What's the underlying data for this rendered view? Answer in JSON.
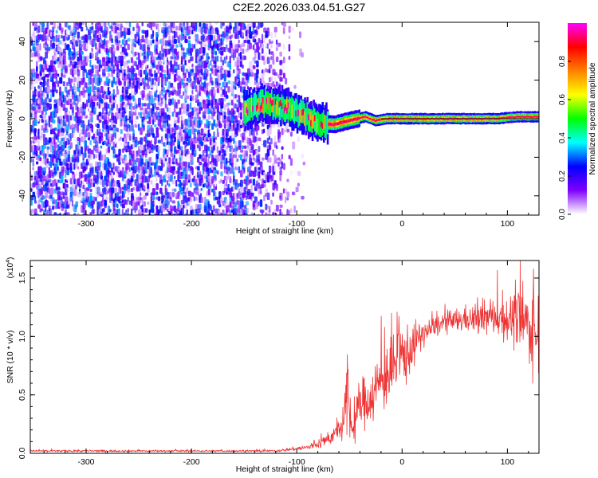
{
  "title": "C2E2.2026.033.04.51.G27",
  "chart_data": [
    {
      "type": "heatmap",
      "title": "C2E2.2026.033.04.51.G27",
      "xlabel": "Height of straight line (km)",
      "ylabel": "Frequency (Hz)",
      "xlim": [
        -353,
        130
      ],
      "ylim": [
        -50,
        50
      ],
      "xticks": [
        -300,
        -200,
        -100,
        0,
        100
      ],
      "xtick_labels": [
        "-300",
        "-200",
        "-100",
        "0",
        "100"
      ],
      "yticks": [
        -40,
        -20,
        0,
        20,
        40
      ],
      "ytick_labels": [
        "-40",
        "-20",
        "0",
        "20",
        "40"
      ],
      "grid": false,
      "noise_region_x": [
        -353,
        -100
      ],
      "signal_track": {
        "x": [
          -150,
          -130,
          -110,
          -95,
          -80,
          -65,
          -50,
          -35,
          -25,
          -15,
          -5,
          0,
          30,
          60,
          90,
          110,
          130
        ],
        "frequency": [
          4,
          8,
          6,
          2,
          -2,
          -3,
          -1,
          1,
          -1,
          0,
          0,
          0,
          0,
          0,
          0,
          1,
          1
        ]
      },
      "colorbar": {
        "label": "Normalized spectral amplitude",
        "range": [
          0,
          1
        ],
        "ticks": [
          0.0,
          0.2,
          0.4,
          0.6,
          0.8
        ],
        "tick_labels": [
          "0.0",
          "0.2",
          "0.4",
          "0.6",
          "0.8"
        ],
        "colors": [
          "#ffffff",
          "#8000ff",
          "#0000ff",
          "#00ffff",
          "#00ff00",
          "#ffff00",
          "#ff8000",
          "#ff0000",
          "#ff00ff"
        ]
      }
    },
    {
      "type": "line",
      "xlabel": "Height of straight line (km)",
      "ylabel": "SNR (10 * v/v)",
      "y_scale_label": "(x10",
      "y_scale_exp": "4",
      "y_scale_close": ")",
      "xlim": [
        -353,
        130
      ],
      "ylim": [
        0,
        1.65
      ],
      "xticks": [
        -300,
        -200,
        -100,
        0,
        100
      ],
      "xtick_labels": [
        "-300",
        "-200",
        "-100",
        "0",
        "100"
      ],
      "yticks": [
        0.0,
        0.5,
        1.0,
        1.5
      ],
      "ytick_labels": [
        "0.0",
        "0.5",
        "1.0",
        "1.5"
      ],
      "color": "#ee3333",
      "grid": false,
      "series": [
        {
          "name": "SNR",
          "x": [
            -353,
            -300,
            -200,
            -120,
            -100,
            -90,
            -80,
            -70,
            -60,
            -55,
            -52,
            -50,
            -47,
            -45,
            -40,
            -35,
            -30,
            -25,
            -20,
            -15,
            -10,
            -5,
            0,
            5,
            10,
            15,
            20,
            30,
            40,
            50,
            60,
            70,
            80,
            90,
            100,
            110,
            120,
            125,
            130
          ],
          "mean": [
            0.02,
            0.02,
            0.02,
            0.02,
            0.04,
            0.05,
            0.08,
            0.12,
            0.2,
            0.26,
            0.45,
            0.35,
            0.2,
            0.26,
            0.42,
            0.45,
            0.47,
            0.55,
            0.62,
            0.66,
            0.7,
            0.76,
            0.84,
            0.85,
            0.92,
            0.98,
            1.02,
            1.08,
            1.12,
            1.13,
            1.15,
            1.14,
            1.16,
            1.17,
            1.15,
            1.14,
            1.1,
            1.06,
            1.0
          ],
          "spread": [
            0.01,
            0.01,
            0.01,
            0.01,
            0.02,
            0.03,
            0.05,
            0.06,
            0.1,
            0.16,
            0.5,
            0.3,
            0.1,
            0.18,
            0.25,
            0.24,
            0.25,
            0.3,
            0.32,
            0.3,
            0.3,
            0.3,
            0.32,
            0.28,
            0.22,
            0.16,
            0.12,
            0.1,
            0.1,
            0.12,
            0.12,
            0.14,
            0.16,
            0.18,
            0.22,
            0.28,
            0.35,
            0.4,
            0.45
          ]
        }
      ]
    }
  ]
}
